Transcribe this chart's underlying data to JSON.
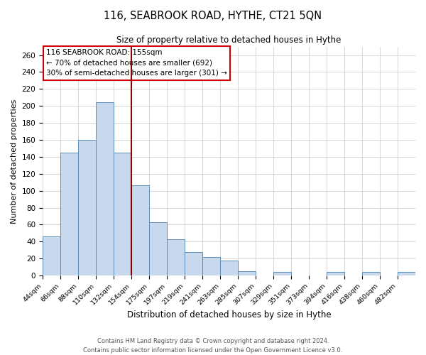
{
  "title": "116, SEABROOK ROAD, HYTHE, CT21 5QN",
  "subtitle": "Size of property relative to detached houses in Hythe",
  "xlabel": "Distribution of detached houses by size in Hythe",
  "ylabel": "Number of detached properties",
  "bin_labels": [
    "44sqm",
    "66sqm",
    "88sqm",
    "110sqm",
    "132sqm",
    "154sqm",
    "175sqm",
    "197sqm",
    "219sqm",
    "241sqm",
    "263sqm",
    "285sqm",
    "307sqm",
    "329sqm",
    "351sqm",
    "373sqm",
    "394sqm",
    "416sqm",
    "438sqm",
    "460sqm",
    "482sqm"
  ],
  "bar_heights": [
    46,
    145,
    160,
    204,
    145,
    106,
    63,
    43,
    28,
    22,
    18,
    5,
    0,
    4,
    0,
    0,
    4,
    0,
    4,
    0,
    4
  ],
  "bar_color": "#c8d9ed",
  "bar_edge_color": "#5b8db8",
  "vline_x": 5,
  "vline_color": "#8b0000",
  "annotation_title": "116 SEABROOK ROAD: 155sqm",
  "annotation_line1": "← 70% of detached houses are smaller (692)",
  "annotation_line2": "30% of semi-detached houses are larger (301) →",
  "annotation_box_edge": "#cc0000",
  "ylim": [
    0,
    270
  ],
  "yticks": [
    0,
    20,
    40,
    60,
    80,
    100,
    120,
    140,
    160,
    180,
    200,
    220,
    240,
    260
  ],
  "footer1": "Contains HM Land Registry data © Crown copyright and database right 2024.",
  "footer2": "Contains public sector information licensed under the Open Government Licence v3.0."
}
